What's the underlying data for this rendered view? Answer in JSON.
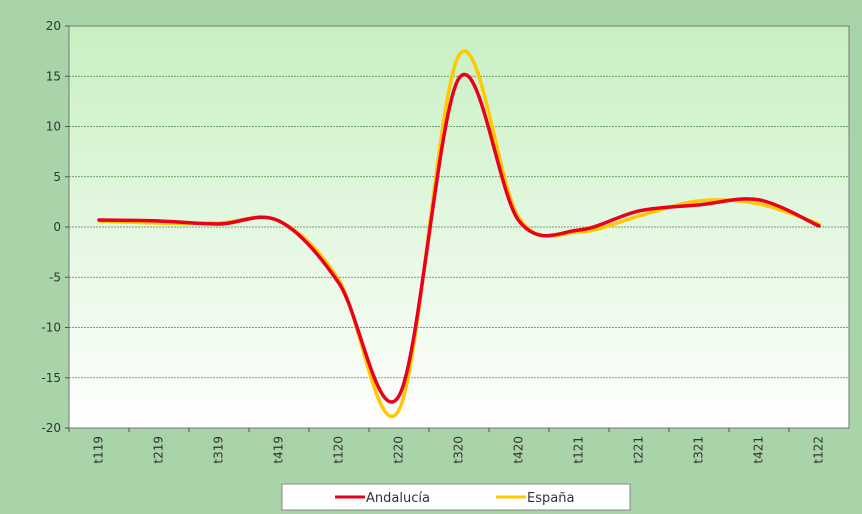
{
  "chart_data": {
    "type": "line",
    "title": "",
    "xlabel": "",
    "ylabel": "",
    "categories": [
      "t119",
      "t219",
      "t319",
      "t419",
      "t120",
      "t220",
      "t320",
      "t420",
      "t121",
      "t221",
      "t321",
      "t421",
      "t122"
    ],
    "series": [
      {
        "name": "Andalucía",
        "color": "#e8001c",
        "values": [
          0.7,
          0.6,
          0.3,
          0.6,
          -5.6,
          -16.8,
          14.8,
          0.6,
          -0.3,
          1.6,
          2.2,
          2.7,
          0.1
        ]
      },
      {
        "name": "España",
        "color": "#ffc800",
        "values": [
          0.6,
          0.4,
          0.4,
          0.6,
          -5.3,
          -18.2,
          17.1,
          0.9,
          -0.5,
          1.1,
          2.6,
          2.3,
          0.3
        ]
      }
    ],
    "ylim": [
      -20,
      20
    ],
    "yticks": [
      "20",
      "15",
      "10",
      "5",
      "0",
      "-5",
      "-10",
      "-15",
      "-20"
    ],
    "grid": true,
    "legend_position": "bottom",
    "colors": {
      "frame": "#a9d3a9",
      "plot_top": "#c8f0c2",
      "plot_bottom": "#ffffff",
      "grid": "#4a8a4a",
      "axis": "#555555"
    }
  }
}
